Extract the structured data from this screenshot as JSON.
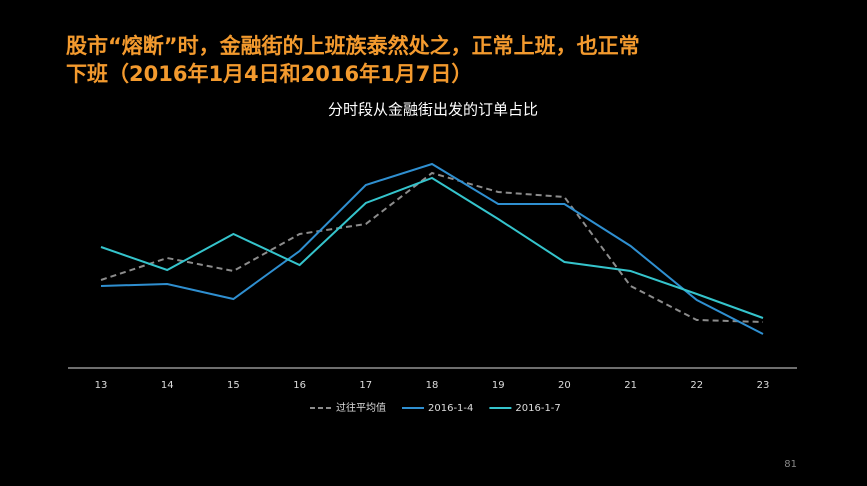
{
  "slide_title": [
    "股市“熔断”时，金融街的上班族泰然处之，正常上班，也正常",
    "下班（2016年1月4日和2016年1月7日）"
  ],
  "page_number": "81",
  "chart_data": {
    "type": "line",
    "title": "分时段从金融街出发的订单占比",
    "categories": [
      "13",
      "14",
      "15",
      "16",
      "17",
      "18",
      "19",
      "20",
      "21",
      "22",
      "23"
    ],
    "ylim": [
      0,
      110
    ],
    "legend": "bottom",
    "series": [
      {
        "name": "过往平均值",
        "color": "#8c8c8c",
        "dashed": true,
        "values": [
          44,
          55,
          48.5,
          67,
          72,
          97.5,
          88,
          85.5,
          41,
          24,
          23
        ]
      },
      {
        "name": "2016-1-4",
        "color": "#2f8fd0",
        "dashed": false,
        "values": [
          41,
          42,
          34.5,
          58.5,
          91.5,
          102,
          82,
          82,
          61,
          34,
          17
        ]
      },
      {
        "name": "2016-1-7",
        "color": "#35c4cc",
        "dashed": false,
        "values": [
          60.5,
          49,
          67,
          51.5,
          82.5,
          95,
          74.5,
          53,
          48.5,
          37,
          25
        ]
      }
    ]
  }
}
